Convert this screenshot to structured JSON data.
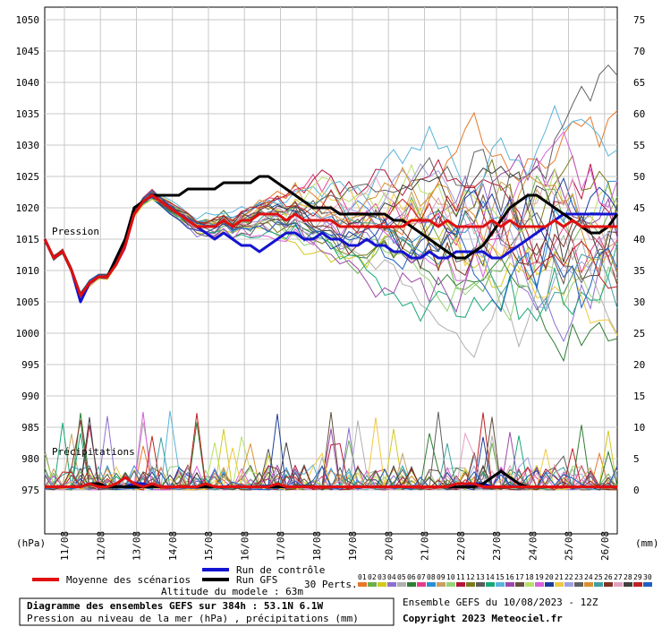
{
  "chart_data": {
    "type": "line",
    "x_dates": [
      "11/08",
      "12/08",
      "13/08",
      "14/08",
      "15/08",
      "16/08",
      "17/08",
      "18/08",
      "19/08",
      "20/08",
      "21/08",
      "22/08",
      "23/08",
      "24/08",
      "25/08",
      "26/08"
    ],
    "left_axis": {
      "unit": "(hPa)",
      "ticks": [
        1050,
        1045,
        1040,
        1035,
        1030,
        1025,
        1020,
        1015,
        1010,
        1005,
        1000,
        995,
        990,
        985,
        980,
        975
      ],
      "ylim": [
        975,
        1050
      ]
    },
    "right_axis": {
      "unit": "(mm)",
      "ticks": [
        75,
        70,
        65,
        60,
        55,
        50,
        45,
        40,
        35,
        30,
        25,
        20,
        15,
        10,
        5,
        0
      ],
      "ylim": [
        0,
        75
      ]
    },
    "panel_labels": {
      "pressure": "Pression",
      "precip": "Précipitations"
    },
    "series": [
      {
        "name": "Moyenne des scénarios",
        "color": "#e01010",
        "pressure": [
          1015,
          1012,
          1013,
          1010,
          1006,
          1008,
          1009,
          1009,
          1011,
          1014,
          1019,
          1021,
          1022,
          1021,
          1020,
          1019,
          1018,
          1017,
          1017,
          1017,
          1018,
          1017,
          1018,
          1018,
          1019,
          1019,
          1019,
          1018,
          1019,
          1018,
          1018,
          1018,
          1018,
          1017,
          1017,
          1017,
          1017,
          1017,
          1017,
          1017,
          1017,
          1018,
          1018,
          1018,
          1017,
          1018,
          1017,
          1017,
          1017,
          1017,
          1018,
          1017,
          1018,
          1017,
          1017,
          1017,
          1017,
          1018,
          1017,
          1018,
          1017,
          1017,
          1017,
          1017,
          1017
        ],
        "precip": [
          0.5,
          0.5,
          0.5,
          0.5,
          0.5,
          1,
          0.5,
          0.5,
          1,
          2,
          1,
          0.5,
          1,
          0.5,
          0.5,
          0.5,
          0.5,
          0.5,
          1,
          0.5,
          0.5,
          0.5,
          0.5,
          0.5,
          0.5,
          0.5,
          1,
          0.5,
          0.5,
          0.5,
          0.5,
          0.5,
          0.5,
          0.5,
          0.5,
          0.5,
          0.5,
          0.5,
          0.5,
          0.5,
          0.5,
          0.5,
          0.5,
          0.5,
          0.5,
          0.5,
          1,
          1,
          1,
          0.5,
          0.5,
          0.5,
          0.5,
          0.5,
          0.5,
          0.5,
          0.5,
          0.5,
          0.5,
          0.5,
          0.5,
          0.5,
          0.5,
          0.5,
          0.5
        ]
      },
      {
        "name": "Run de contrôle",
        "color": "#1414d0",
        "pressure": [
          1015,
          1012,
          1013,
          1010,
          1005,
          1008,
          1009,
          1009,
          1012,
          1015,
          1020,
          1021,
          1022,
          1021,
          1020,
          1019,
          1018,
          1017,
          1016,
          1015,
          1016,
          1015,
          1014,
          1014,
          1013,
          1014,
          1015,
          1016,
          1016,
          1015,
          1015,
          1016,
          1015,
          1015,
          1014,
          1014,
          1015,
          1014,
          1014,
          1013,
          1013,
          1012,
          1012,
          1013,
          1012,
          1012,
          1013,
          1013,
          1013,
          1013,
          1012,
          1012,
          1013,
          1014,
          1015,
          1016,
          1017,
          1018,
          1019,
          1019,
          1019,
          1019,
          1019,
          1019,
          1019
        ],
        "precip": [
          0.5,
          0.5,
          0.5,
          0.5,
          0.5,
          1,
          1,
          0.5,
          0.5,
          0.5,
          1,
          1,
          0.5,
          0.5,
          0.5,
          0.5,
          0.5,
          0.5,
          0.5,
          0.5,
          0.5,
          0.5,
          0.5,
          0.5,
          0.5,
          0.5,
          0.5,
          0.5,
          0.5,
          0.5,
          0.5,
          0.5,
          0.5,
          0.5,
          0.5,
          0.5,
          0.5,
          0.5,
          0.5,
          0.5,
          0.5,
          0.5,
          0.5,
          0.5,
          0.5,
          0.5,
          0.5,
          0.5,
          1,
          1,
          0.5,
          0.5,
          0.5,
          0.5,
          0.5,
          0.5,
          0.5,
          0.5,
          0.5,
          0.5,
          0.5,
          0.5,
          0.5,
          0.5,
          0.5
        ]
      },
      {
        "name": "Run GFS",
        "color": "#000000",
        "pressure": [
          1015,
          1012,
          1013,
          1010,
          1006,
          1008,
          1009,
          1009,
          1012,
          1015,
          1020,
          1021,
          1022,
          1022,
          1022,
          1022,
          1023,
          1023,
          1023,
          1023,
          1024,
          1024,
          1024,
          1024,
          1025,
          1025,
          1024,
          1023,
          1022,
          1021,
          1020,
          1020,
          1020,
          1019,
          1019,
          1019,
          1019,
          1019,
          1019,
          1018,
          1018,
          1017,
          1016,
          1015,
          1014,
          1013,
          1012,
          1012,
          1013,
          1014,
          1016,
          1018,
          1020,
          1021,
          1022,
          1022,
          1021,
          1020,
          1019,
          1018,
          1017,
          1016,
          1016,
          1017,
          1019
        ],
        "precip": [
          0.5,
          0.5,
          0.5,
          0.5,
          0.5,
          1,
          1,
          0.5,
          0.5,
          0.5,
          0.5,
          0.5,
          0.5,
          0.5,
          0.5,
          0.5,
          0.5,
          0.5,
          0.5,
          0.5,
          0.5,
          0.5,
          0.5,
          0.5,
          0.5,
          0.5,
          0.5,
          0.5,
          0.5,
          0.5,
          0.5,
          0.5,
          0.5,
          0.5,
          0.5,
          0.5,
          0.5,
          0.5,
          0.5,
          0.5,
          0.5,
          0.5,
          0.5,
          0.5,
          0.5,
          0.5,
          0.5,
          0.5,
          0.5,
          1,
          2,
          3,
          2,
          1,
          0.5,
          0.5,
          0.5,
          0.5,
          0.5,
          0.5,
          0.5,
          0.5,
          0.5,
          0.5,
          0.5
        ]
      }
    ],
    "perturbations": {
      "label": "30 Perts.",
      "ids": [
        "01",
        "02",
        "03",
        "04",
        "05",
        "06",
        "07",
        "08",
        "09",
        "10",
        "11",
        "12",
        "13",
        "14",
        "15",
        "16",
        "17",
        "18",
        "19",
        "20",
        "21",
        "22",
        "23",
        "24",
        "25",
        "26",
        "27",
        "28",
        "29",
        "30"
      ],
      "colors": [
        "#e6782a",
        "#6ab04c",
        "#d4c81e",
        "#8c6fd1",
        "#b0b0b0",
        "#2e7d32",
        "#e63c8c",
        "#2a8fd6",
        "#c8a064",
        "#96d278",
        "#b4143c",
        "#7a7a1a",
        "#5a5a5a",
        "#18a878",
        "#5ab4dc",
        "#9c4aa8",
        "#64503c",
        "#b8e066",
        "#d860d8",
        "#1c3c9c",
        "#f0c840",
        "#a0a0e0",
        "#606060",
        "#d89030",
        "#40a0a0",
        "#803020",
        "#e0a0c0",
        "#404040",
        "#c02020",
        "#2060c0"
      ]
    },
    "model_altitude": "Altitude du modele : 63m",
    "footer": {
      "title": "Diagramme des ensembles GEFS sur 384h : 53.1N 6.1W",
      "subtitle": "Pression au niveau de la mer (hPa) , précipitations (mm)",
      "run_info": "Ensemble GEFS du 10/08/2023 - 12Z",
      "copyright": "Copyright 2023 Meteociel.fr"
    }
  }
}
